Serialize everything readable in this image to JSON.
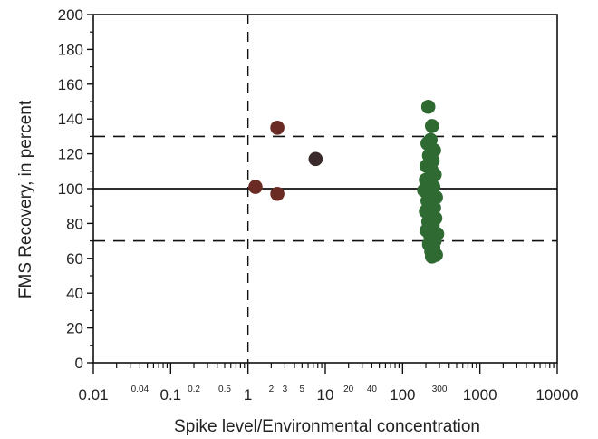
{
  "chart_data": {
    "type": "scatter",
    "xlabel": "Spike level/Environmental concentration",
    "ylabel": "FMS Recovery, in percent",
    "x_scale": "log",
    "xlim": [
      0.01,
      10000
    ],
    "ylim": [
      0,
      200
    ],
    "x_ticks": [
      "0.01",
      "0.1",
      "1",
      "10",
      "100",
      "1000",
      "10000"
    ],
    "x_minor_labels": [
      {
        "value": 0.04,
        "label": "0.04"
      },
      {
        "value": 0.2,
        "label": "0.2"
      },
      {
        "value": 0.5,
        "label": "0.5"
      },
      {
        "value": 2,
        "label": "2"
      },
      {
        "value": 3,
        "label": "3"
      },
      {
        "value": 5,
        "label": "5"
      },
      {
        "value": 20,
        "label": "20"
      },
      {
        "value": 40,
        "label": "40"
      },
      {
        "value": 300,
        "label": "300"
      }
    ],
    "y_ticks": [
      0,
      20,
      40,
      60,
      80,
      100,
      120,
      140,
      160,
      180,
      200
    ],
    "reference_lines": {
      "y_solid": 100,
      "y_dashed": [
        70,
        130
      ],
      "x_dashed": 1
    },
    "colors": {
      "low_spike": "#6b2b25",
      "mid_spike": "#3a2a2c",
      "high_spike": "#2f6a33"
    },
    "series": [
      {
        "color_key": "low_spike",
        "points": [
          {
            "x": 1.25,
            "y": 101
          },
          {
            "x": 2.4,
            "y": 135
          },
          {
            "x": 2.4,
            "y": 97
          }
        ]
      },
      {
        "color_key": "mid_spike",
        "points": [
          {
            "x": 7.5,
            "y": 117
          }
        ]
      },
      {
        "color_key": "high_spike",
        "points": [
          {
            "x": 215,
            "y": 147
          },
          {
            "x": 240,
            "y": 136
          },
          {
            "x": 230,
            "y": 128
          },
          {
            "x": 210,
            "y": 126
          },
          {
            "x": 255,
            "y": 122
          },
          {
            "x": 220,
            "y": 119
          },
          {
            "x": 245,
            "y": 116
          },
          {
            "x": 205,
            "y": 113
          },
          {
            "x": 235,
            "y": 111
          },
          {
            "x": 260,
            "y": 108
          },
          {
            "x": 200,
            "y": 105
          },
          {
            "x": 225,
            "y": 103
          },
          {
            "x": 250,
            "y": 101
          },
          {
            "x": 190,
            "y": 99
          },
          {
            "x": 240,
            "y": 97
          },
          {
            "x": 270,
            "y": 95
          },
          {
            "x": 210,
            "y": 93
          },
          {
            "x": 235,
            "y": 91
          },
          {
            "x": 255,
            "y": 89
          },
          {
            "x": 200,
            "y": 87
          },
          {
            "x": 230,
            "y": 85
          },
          {
            "x": 265,
            "y": 83
          },
          {
            "x": 215,
            "y": 81
          },
          {
            "x": 245,
            "y": 79
          },
          {
            "x": 205,
            "y": 76
          },
          {
            "x": 280,
            "y": 74
          },
          {
            "x": 230,
            "y": 72
          },
          {
            "x": 260,
            "y": 70
          },
          {
            "x": 220,
            "y": 68
          },
          {
            "x": 250,
            "y": 66
          },
          {
            "x": 235,
            "y": 64
          },
          {
            "x": 270,
            "y": 62
          },
          {
            "x": 240,
            "y": 61
          }
        ]
      }
    ]
  }
}
